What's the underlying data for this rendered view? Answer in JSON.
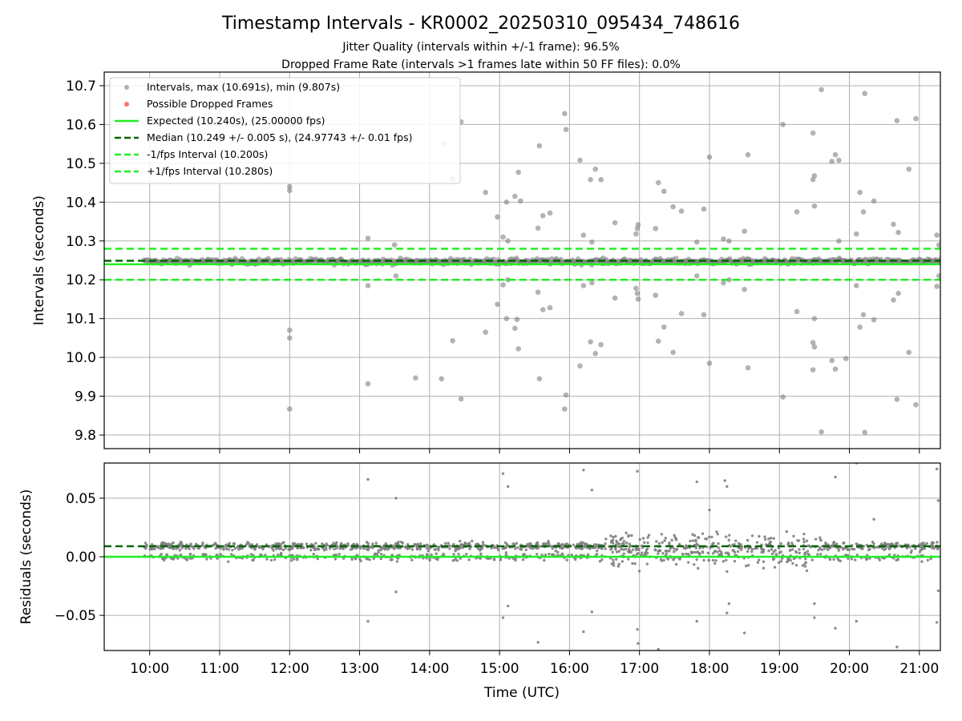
{
  "title": "Timestamp Intervals - KR0002_20250310_095434_748616",
  "subtitle_1": "Jitter Quality (intervals within +/-1 frame): 96.5%",
  "subtitle_2": "Dropped Frame Rate (intervals >1 frames late within 50 FF files): 0.0%",
  "colors": {
    "points": "#808080",
    "dropped": "#ff4c4c",
    "expected": "#22ee22",
    "median": "#006400",
    "grid": "#b0b0b0"
  },
  "legend": {
    "intervals": "Intervals, max (10.691s), min (9.807s)",
    "dropped": "Possible Dropped Frames",
    "expected": "Expected (10.240s), (25.00000 fps)",
    "median": "Median (10.249 +/- 0.005 s), (24.97743 +/- 0.01 fps)",
    "minus": "-1/fps Interval (10.200s)",
    "plus": "+1/fps Interval (10.280s)"
  },
  "chart_data": [
    {
      "type": "scatter",
      "ylabel": "Intervals (seconds)",
      "x_unit": "hours UTC",
      "xlim": [
        9.35,
        21.3
      ],
      "ylim": [
        9.765,
        10.735
      ],
      "yticks": [
        "9.8",
        "9.9",
        "10.0",
        "10.1",
        "10.2",
        "10.3",
        "10.4",
        "10.5",
        "10.6",
        "10.7"
      ],
      "ytick_values": [
        9.8,
        9.9,
        10.0,
        10.1,
        10.2,
        10.3,
        10.4,
        10.5,
        10.6,
        10.7
      ],
      "grid": true,
      "legend_position": "top-left",
      "hlines": {
        "expected": 10.24,
        "median": 10.249,
        "minus_one_fps": 10.2,
        "plus_one_fps": 10.28
      },
      "band": {
        "x_start": 9.92,
        "x_end": 21.3,
        "center": 10.247,
        "spread": 0.008
      },
      "outliers": [
        [
          12.0,
          10.44
        ],
        [
          12.0,
          10.43
        ],
        [
          12.0,
          10.07
        ],
        [
          12.0,
          10.05
        ],
        [
          12.0,
          9.867
        ],
        [
          13.12,
          10.307
        ],
        [
          13.12,
          10.185
        ],
        [
          13.12,
          9.932
        ],
        [
          13.5,
          10.29
        ],
        [
          13.52,
          10.21
        ],
        [
          13.8,
          9.947
        ],
        [
          14.17,
          9.945
        ],
        [
          14.2,
          10.55
        ],
        [
          14.33,
          10.46
        ],
        [
          14.33,
          10.043
        ],
        [
          14.45,
          10.607
        ],
        [
          14.45,
          9.893
        ],
        [
          14.8,
          10.425
        ],
        [
          14.8,
          10.065
        ],
        [
          14.97,
          10.362
        ],
        [
          14.97,
          10.137
        ],
        [
          15.05,
          10.31
        ],
        [
          15.05,
          10.187
        ],
        [
          15.1,
          10.4
        ],
        [
          15.1,
          10.1
        ],
        [
          15.12,
          10.3
        ],
        [
          15.12,
          10.2
        ],
        [
          15.22,
          10.415
        ],
        [
          15.22,
          10.075
        ],
        [
          15.25,
          10.098
        ],
        [
          15.27,
          10.477
        ],
        [
          15.27,
          10.022
        ],
        [
          15.3,
          10.403
        ],
        [
          15.55,
          10.333
        ],
        [
          15.55,
          10.168
        ],
        [
          15.57,
          10.545
        ],
        [
          15.57,
          9.945
        ],
        [
          15.62,
          10.365
        ],
        [
          15.62,
          10.123
        ],
        [
          15.72,
          10.372
        ],
        [
          15.72,
          10.128
        ],
        [
          15.93,
          10.628
        ],
        [
          15.93,
          9.867
        ],
        [
          15.95,
          10.587
        ],
        [
          15.95,
          9.903
        ],
        [
          16.15,
          10.508
        ],
        [
          16.15,
          9.978
        ],
        [
          16.2,
          10.315
        ],
        [
          16.2,
          10.185
        ],
        [
          16.3,
          10.458
        ],
        [
          16.3,
          10.04
        ],
        [
          16.32,
          10.297
        ],
        [
          16.32,
          10.192
        ],
        [
          16.37,
          10.485
        ],
        [
          16.37,
          10.01
        ],
        [
          16.45,
          10.458
        ],
        [
          16.45,
          10.033
        ],
        [
          16.65,
          10.347
        ],
        [
          16.65,
          10.153
        ],
        [
          16.95,
          10.318
        ],
        [
          16.95,
          10.178
        ],
        [
          16.97,
          10.332
        ],
        [
          16.97,
          10.165
        ],
        [
          16.98,
          10.342
        ],
        [
          16.98,
          10.15
        ],
        [
          17.23,
          10.332
        ],
        [
          17.23,
          10.16
        ],
        [
          17.27,
          10.45
        ],
        [
          17.27,
          10.042
        ],
        [
          17.35,
          10.428
        ],
        [
          17.35,
          10.078
        ],
        [
          17.48,
          10.388
        ],
        [
          17.48,
          10.013
        ],
        [
          17.6,
          10.377
        ],
        [
          17.6,
          10.113
        ],
        [
          17.82,
          10.297
        ],
        [
          17.82,
          10.21
        ],
        [
          17.92,
          10.382
        ],
        [
          17.92,
          10.11
        ],
        [
          18.0,
          10.516
        ],
        [
          18.0,
          9.985
        ],
        [
          18.2,
          10.305
        ],
        [
          18.2,
          10.192
        ],
        [
          18.28,
          10.3
        ],
        [
          18.28,
          10.2
        ],
        [
          18.5,
          10.325
        ],
        [
          18.5,
          10.175
        ],
        [
          18.55,
          10.522
        ],
        [
          18.55,
          9.973
        ],
        [
          19.05,
          10.6
        ],
        [
          19.05,
          9.898
        ],
        [
          19.25,
          10.375
        ],
        [
          19.25,
          10.118
        ],
        [
          19.48,
          10.458
        ],
        [
          19.48,
          10.038
        ],
        [
          19.5,
          10.468
        ],
        [
          19.5,
          10.027
        ],
        [
          19.48,
          10.578
        ],
        [
          19.48,
          9.968
        ],
        [
          19.5,
          10.39
        ],
        [
          19.5,
          10.1
        ],
        [
          19.6,
          10.69
        ],
        [
          19.6,
          9.808
        ],
        [
          19.75,
          10.505
        ],
        [
          19.75,
          9.992
        ],
        [
          19.8,
          10.522
        ],
        [
          19.8,
          9.97
        ],
        [
          19.85,
          10.508
        ],
        [
          19.85,
          10.3
        ],
        [
          19.95,
          9.997
        ],
        [
          20.1,
          10.318
        ],
        [
          20.1,
          10.185
        ],
        [
          20.15,
          10.425
        ],
        [
          20.15,
          10.078
        ],
        [
          20.22,
          10.68
        ],
        [
          20.22,
          9.807
        ],
        [
          20.2,
          10.375
        ],
        [
          20.2,
          10.11
        ],
        [
          20.35,
          10.403
        ],
        [
          20.35,
          10.097
        ],
        [
          20.63,
          10.343
        ],
        [
          20.63,
          10.148
        ],
        [
          20.68,
          10.61
        ],
        [
          20.68,
          9.892
        ],
        [
          20.7,
          10.322
        ],
        [
          20.7,
          10.165
        ],
        [
          20.85,
          10.485
        ],
        [
          20.85,
          10.013
        ],
        [
          20.95,
          10.615
        ],
        [
          20.95,
          9.878
        ],
        [
          21.25,
          10.315
        ],
        [
          21.25,
          10.183
        ],
        [
          21.28,
          10.29
        ],
        [
          21.28,
          10.21
        ]
      ],
      "dropped_frames": []
    },
    {
      "type": "scatter",
      "xlabel": "Time (UTC)",
      "ylabel": "Residuals (seconds)",
      "xlim": [
        9.35,
        21.3
      ],
      "ylim": [
        -0.08,
        0.08
      ],
      "xticks": [
        "10:00",
        "11:00",
        "12:00",
        "13:00",
        "14:00",
        "15:00",
        "16:00",
        "17:00",
        "18:00",
        "19:00",
        "20:00",
        "21:00"
      ],
      "xtick_values": [
        10,
        11,
        12,
        13,
        14,
        15,
        16,
        17,
        18,
        19,
        20,
        21
      ],
      "yticks": [
        "−0.05",
        "0.00",
        "0.05"
      ],
      "ytick_values": [
        -0.05,
        0.0,
        0.05
      ],
      "grid": true,
      "hlines": {
        "expected": 0.0,
        "median": 0.009
      },
      "band": {
        "x_start": 9.92,
        "x_end": 21.3,
        "upper_center": 0.009,
        "lower_center": 0.0
      },
      "outliers": [
        [
          13.12,
          0.066
        ],
        [
          13.12,
          -0.055
        ],
        [
          13.52,
          0.05
        ],
        [
          13.52,
          -0.03
        ],
        [
          15.05,
          0.071
        ],
        [
          15.05,
          -0.052
        ],
        [
          15.12,
          0.06
        ],
        [
          15.12,
          -0.042
        ],
        [
          15.55,
          -0.073
        ],
        [
          16.2,
          0.074
        ],
        [
          16.2,
          -0.064
        ],
        [
          16.32,
          0.057
        ],
        [
          16.32,
          -0.047
        ],
        [
          16.97,
          0.073
        ],
        [
          16.97,
          -0.062
        ],
        [
          16.98,
          -0.074
        ],
        [
          17.27,
          -0.079
        ],
        [
          17.82,
          0.064
        ],
        [
          17.82,
          -0.055
        ],
        [
          18.0,
          0.04
        ],
        [
          18.22,
          0.065
        ],
        [
          18.25,
          0.06
        ],
        [
          18.25,
          -0.048
        ],
        [
          18.28,
          -0.04
        ],
        [
          18.5,
          -0.065
        ],
        [
          19.5,
          -0.04
        ],
        [
          19.5,
          -0.052
        ],
        [
          19.8,
          0.068
        ],
        [
          19.8,
          -0.061
        ],
        [
          20.1,
          0.08
        ],
        [
          20.1,
          -0.055
        ],
        [
          20.35,
          0.032
        ],
        [
          20.68,
          -0.077
        ],
        [
          21.25,
          0.075
        ],
        [
          21.27,
          0.048
        ],
        [
          21.27,
          -0.029
        ],
        [
          21.25,
          -0.056
        ]
      ]
    }
  ]
}
